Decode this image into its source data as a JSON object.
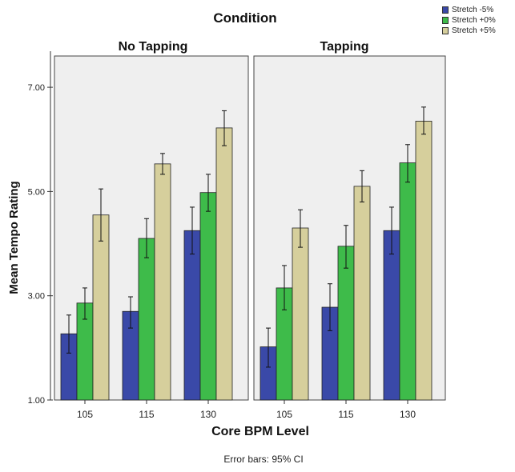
{
  "chart_data": {
    "type": "bar",
    "title": "Condition",
    "panels": [
      "No Tapping",
      "Tapping"
    ],
    "categories": [
      "105",
      "115",
      "130"
    ],
    "xlabel": "Core BPM Level",
    "ylabel": "Mean Tempo Rating",
    "ylim": [
      1,
      7.6
    ],
    "yticks": [
      "1.00",
      "3.00",
      "5.00",
      "7.00"
    ],
    "footnote": "Error bars: 95% CI",
    "grid": false,
    "legend_position": "top-right",
    "series": [
      {
        "name": "Stretch -5%",
        "color": "#3a49a8",
        "values": [
          [
            2.27,
            2.7,
            4.25
          ],
          [
            2.02,
            2.78,
            4.25
          ]
        ],
        "ci_low": [
          [
            1.9,
            2.38,
            3.8
          ],
          [
            1.63,
            2.33,
            3.8
          ]
        ],
        "ci_high": [
          [
            2.63,
            2.98,
            4.7
          ],
          [
            2.38,
            3.23,
            4.7
          ]
        ]
      },
      {
        "name": "Stretch +0%",
        "color": "#3ebb4a",
        "values": [
          [
            2.86,
            4.1,
            4.98
          ],
          [
            3.15,
            3.95,
            5.55
          ]
        ],
        "ci_low": [
          [
            2.55,
            3.73,
            4.62
          ],
          [
            2.73,
            3.53,
            5.18
          ]
        ],
        "ci_high": [
          [
            3.15,
            4.48,
            5.33
          ],
          [
            3.58,
            4.35,
            5.9
          ]
        ]
      },
      {
        "name": "Stretch +5%",
        "color": "#d6cf9c",
        "values": [
          [
            4.55,
            5.53,
            6.22
          ],
          [
            4.3,
            5.1,
            6.35
          ]
        ],
        "ci_low": [
          [
            4.05,
            5.33,
            5.88
          ],
          [
            3.93,
            4.8,
            6.1
          ]
        ],
        "ci_high": [
          [
            5.05,
            5.73,
            6.55
          ],
          [
            4.65,
            5.4,
            6.62
          ]
        ]
      }
    ]
  }
}
